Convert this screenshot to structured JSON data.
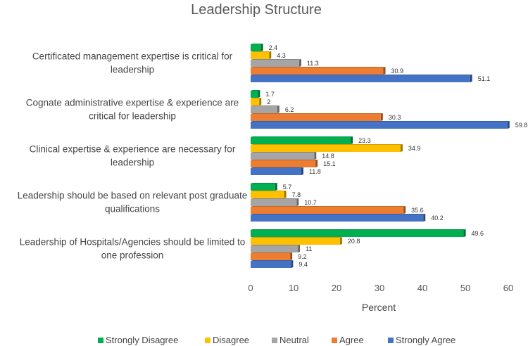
{
  "chart_data": {
    "type": "bar",
    "orientation": "horizontal",
    "title": "Leadership Structure",
    "xlabel": "Percent",
    "ylabel": "",
    "xlim": [
      0,
      60
    ],
    "xticks": [
      0,
      10,
      20,
      30,
      40,
      50,
      60
    ],
    "legend_position": "bottom",
    "categories": [
      [
        "Certificated management expertise is critical for",
        "leadership"
      ],
      [
        "Cognate administrative expertise & experience are",
        "critical for leadership"
      ],
      [
        "Clinical expertise & experience are necessary for",
        "leadership"
      ],
      [
        "Leadership should be based on relevant post graduate",
        "qualifications"
      ],
      [
        "Leadership of Hospitals/Agencies should be limited to",
        "one profession"
      ]
    ],
    "series": [
      {
        "name": "Strongly Disagree",
        "color": "#00B050",
        "values": [
          2.4,
          1.7,
          23.3,
          5.7,
          49.6
        ]
      },
      {
        "name": "Disagree",
        "color": "#FFC000",
        "values": [
          4.3,
          2,
          34.9,
          7.8,
          20.8
        ]
      },
      {
        "name": "Neutral",
        "color": "#A5A5A5",
        "values": [
          11.3,
          6.2,
          14.8,
          10.7,
          11
        ]
      },
      {
        "name": "Agree",
        "color": "#ED7D31",
        "values": [
          30.9,
          30.3,
          15.1,
          35.6,
          9.2
        ]
      },
      {
        "name": "Strongly Agree",
        "color": "#4472C4",
        "values": [
          51.1,
          59.8,
          11.8,
          40.2,
          9.4
        ]
      }
    ],
    "label_tones": [
      [
        "dark",
        "dark",
        "dark",
        "dark",
        "light"
      ],
      [
        "dark",
        "light",
        "dark",
        "dark",
        "light"
      ],
      [
        "dark",
        "light",
        "dark",
        "dark",
        "light"
      ],
      [
        "dark",
        "light",
        "dark",
        "dark",
        "light"
      ],
      [
        "dark",
        "light",
        "dark",
        "dark",
        "light"
      ]
    ],
    "gridlines": false
  }
}
